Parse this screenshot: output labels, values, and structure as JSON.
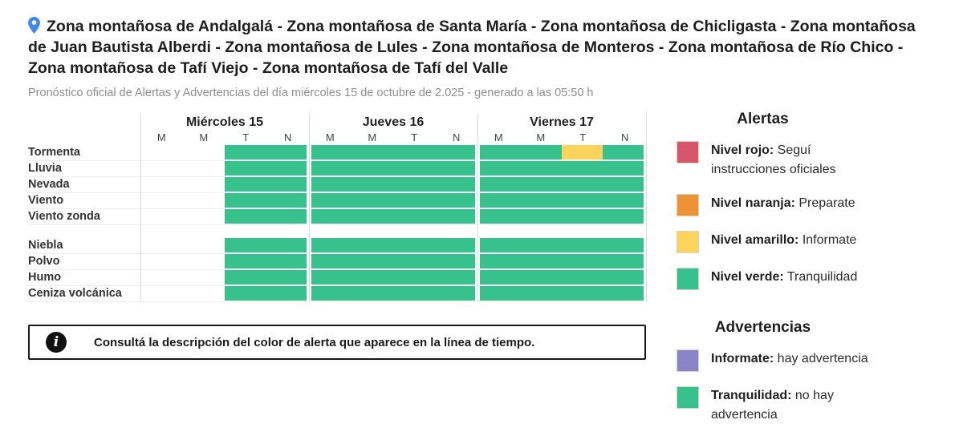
{
  "header": {
    "title": "Zona montañosa de Andalgalá - Zona montañosa de Santa María - Zona montañosa de Chicligasta - Zona montañosa de Juan Bautista Alberdi - Zona montañosa de Lules - Zona montañosa de Monteros - Zona montañosa de Río Chico - Zona montañosa de Tafí Viejo - Zona montañosa de Tafí del Valle",
    "subtitle": "Pronóstico oficial de Alertas y Advertencias del día miércoles 15 de octubre de 2.025 - generado a las 05:50 h",
    "pin_icon": "location-pin-icon"
  },
  "colors": {
    "green": "#36c18e",
    "yellow": "#fcd45c",
    "red": "#d6566b",
    "orange": "#ee9335",
    "purple": "#8b84c6",
    "pin_blue": "#4285f4"
  },
  "timeline": {
    "days": [
      {
        "label": "Miércoles 15",
        "periods": [
          "M",
          "M",
          "T",
          "N"
        ]
      },
      {
        "label": "Jueves 16",
        "periods": [
          "M",
          "M",
          "T",
          "N"
        ]
      },
      {
        "label": "Viernes 17",
        "periods": [
          "M",
          "M",
          "T",
          "N"
        ]
      }
    ],
    "groups": [
      {
        "rows": [
          {
            "label": "Tormenta",
            "cells": [
              [
                "none",
                "none",
                "green",
                "green"
              ],
              [
                "green",
                "green",
                "green",
                "green"
              ],
              [
                "green",
                "green",
                "yellow",
                "green"
              ]
            ]
          },
          {
            "label": "Lluvia",
            "cells": [
              [
                "none",
                "none",
                "green",
                "green"
              ],
              [
                "green",
                "green",
                "green",
                "green"
              ],
              [
                "green",
                "green",
                "green",
                "green"
              ]
            ]
          },
          {
            "label": "Nevada",
            "cells": [
              [
                "none",
                "none",
                "green",
                "green"
              ],
              [
                "green",
                "green",
                "green",
                "green"
              ],
              [
                "green",
                "green",
                "green",
                "green"
              ]
            ]
          },
          {
            "label": "Viento",
            "cells": [
              [
                "none",
                "none",
                "green",
                "green"
              ],
              [
                "green",
                "green",
                "green",
                "green"
              ],
              [
                "green",
                "green",
                "green",
                "green"
              ]
            ]
          },
          {
            "label": "Viento zonda",
            "cells": [
              [
                "none",
                "none",
                "green",
                "green"
              ],
              [
                "green",
                "green",
                "green",
                "green"
              ],
              [
                "green",
                "green",
                "green",
                "green"
              ]
            ]
          }
        ]
      },
      {
        "rows": [
          {
            "label": "Niebla",
            "cells": [
              [
                "none",
                "none",
                "green",
                "green"
              ],
              [
                "green",
                "green",
                "green",
                "green"
              ],
              [
                "green",
                "green",
                "green",
                "green"
              ]
            ]
          },
          {
            "label": "Polvo",
            "cells": [
              [
                "none",
                "none",
                "green",
                "green"
              ],
              [
                "green",
                "green",
                "green",
                "green"
              ],
              [
                "green",
                "green",
                "green",
                "green"
              ]
            ]
          },
          {
            "label": "Humo",
            "cells": [
              [
                "none",
                "none",
                "green",
                "green"
              ],
              [
                "green",
                "green",
                "green",
                "green"
              ],
              [
                "green",
                "green",
                "green",
                "green"
              ]
            ]
          },
          {
            "label": "Ceniza volcánica",
            "cells": [
              [
                "none",
                "none",
                "green",
                "green"
              ],
              [
                "green",
                "green",
                "green",
                "green"
              ],
              [
                "green",
                "green",
                "green",
                "green"
              ]
            ]
          }
        ]
      }
    ]
  },
  "info_box": {
    "icon": "info-icon",
    "text": "Consultá la descripción del color de alerta que aparece en la línea de tiempo."
  },
  "legend": {
    "alerts": {
      "title": "Alertas",
      "items": [
        {
          "color": "#d6566b",
          "label": "Nivel rojo:",
          "description": "Seguí instrucciones oficiales"
        },
        {
          "color": "#ee9335",
          "label": "Nivel naranja:",
          "description": "Preparate"
        },
        {
          "color": "#fcd45c",
          "label": "Nivel amarillo:",
          "description": "Informate"
        },
        {
          "color": "#36c18e",
          "label": "Nivel verde:",
          "description": "Tranquilidad"
        }
      ]
    },
    "warnings": {
      "title": "Advertencias",
      "items": [
        {
          "color": "#8b84c6",
          "label": "Informate:",
          "description": "hay advertencia"
        },
        {
          "color": "#36c18e",
          "label": "Tranquilidad:",
          "description": "no hay advertencia"
        }
      ]
    }
  }
}
